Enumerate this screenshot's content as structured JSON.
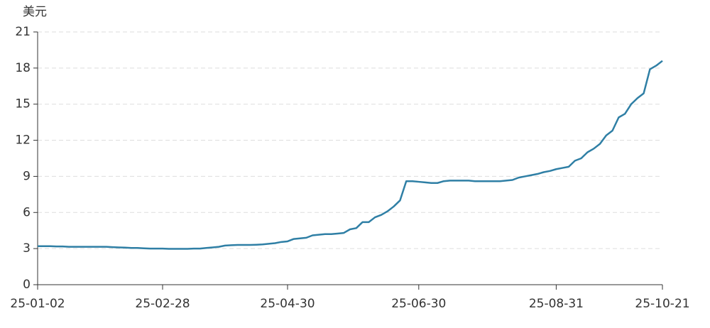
{
  "chart_data": {
    "type": "line",
    "ylabel": "美元",
    "categories": [
      "25-01-02",
      null,
      null,
      null,
      null,
      null,
      null,
      null,
      null,
      null,
      null,
      null,
      null,
      null,
      null,
      null,
      null,
      null,
      null,
      null,
      "25-02-28",
      null,
      null,
      null,
      null,
      null,
      null,
      null,
      null,
      null,
      null,
      null,
      null,
      null,
      null,
      null,
      null,
      null,
      null,
      null,
      "25-04-30",
      null,
      null,
      null,
      null,
      null,
      null,
      null,
      null,
      null,
      null,
      null,
      null,
      null,
      null,
      null,
      null,
      null,
      null,
      null,
      null,
      "25-06-30",
      null,
      null,
      null,
      null,
      null,
      null,
      null,
      null,
      null,
      null,
      null,
      null,
      null,
      null,
      null,
      null,
      null,
      null,
      null,
      null,
      null,
      "25-08-31",
      null,
      null,
      null,
      null,
      null,
      null,
      null,
      null,
      null,
      null,
      null,
      null,
      null,
      null,
      null,
      null,
      "25-10-21"
    ],
    "values": [
      3.2,
      3.2,
      3.2,
      3.18,
      3.18,
      3.15,
      3.15,
      3.15,
      3.15,
      3.15,
      3.15,
      3.15,
      3.12,
      3.1,
      3.08,
      3.05,
      3.05,
      3.02,
      3.0,
      3.0,
      3.0,
      2.98,
      2.98,
      2.98,
      2.98,
      3.0,
      3.0,
      3.05,
      3.1,
      3.15,
      3.25,
      3.28,
      3.3,
      3.3,
      3.3,
      3.32,
      3.35,
      3.4,
      3.45,
      3.55,
      3.6,
      3.8,
      3.85,
      3.9,
      4.1,
      4.15,
      4.2,
      4.2,
      4.25,
      4.3,
      4.6,
      4.7,
      5.2,
      5.2,
      5.6,
      5.8,
      6.1,
      6.5,
      7.0,
      8.6,
      8.6,
      8.55,
      8.5,
      8.45,
      8.45,
      8.6,
      8.65,
      8.65,
      8.65,
      8.65,
      8.6,
      8.6,
      8.6,
      8.6,
      8.6,
      8.65,
      8.7,
      8.9,
      9.0,
      9.1,
      9.2,
      9.35,
      9.45,
      9.6,
      9.7,
      9.8,
      10.3,
      10.5,
      11.0,
      11.3,
      11.7,
      12.4,
      12.8,
      13.9,
      14.2,
      15.0,
      15.5,
      15.9,
      17.9,
      18.2,
      18.6
    ],
    "color": "#2f7fa5",
    "ylim": [
      0,
      21
    ],
    "yticks": [
      0,
      3,
      6,
      9,
      12,
      15,
      18,
      21
    ],
    "grid": true
  }
}
